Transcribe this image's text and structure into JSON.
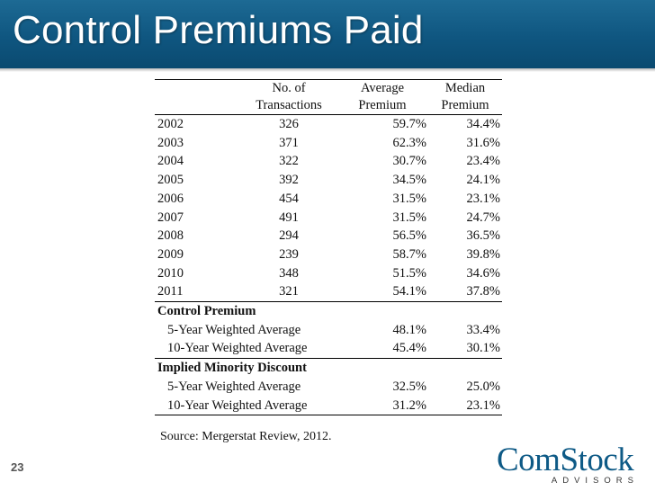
{
  "slide": {
    "title": "Control Premiums Paid",
    "number": "23",
    "source": "Source: Mergerstat Review, 2012.",
    "colors": {
      "title_bar": "#0f5680",
      "title_text": "#ffffff",
      "logo": "#0e5a86"
    }
  },
  "table": {
    "headers": {
      "col_tx": [
        "No. of",
        "Transactions"
      ],
      "col_avg": [
        "Average",
        "Premium"
      ],
      "col_med": [
        "Median",
        "Premium"
      ]
    },
    "rows": [
      {
        "year": "2002",
        "transactions": "326",
        "average": "59.7%",
        "median": "34.4%"
      },
      {
        "year": "2003",
        "transactions": "371",
        "average": "62.3%",
        "median": "31.6%"
      },
      {
        "year": "2004",
        "transactions": "322",
        "average": "30.7%",
        "median": "23.4%"
      },
      {
        "year": "2005",
        "transactions": "392",
        "average": "34.5%",
        "median": "24.1%"
      },
      {
        "year": "2006",
        "transactions": "454",
        "average": "31.5%",
        "median": "23.1%"
      },
      {
        "year": "2007",
        "transactions": "491",
        "average": "31.5%",
        "median": "24.7%"
      },
      {
        "year": "2008",
        "transactions": "294",
        "average": "56.5%",
        "median": "36.5%"
      },
      {
        "year": "2009",
        "transactions": "239",
        "average": "58.7%",
        "median": "39.8%"
      },
      {
        "year": "2010",
        "transactions": "348",
        "average": "51.5%",
        "median": "34.6%"
      },
      {
        "year": "2011",
        "transactions": "321",
        "average": "54.1%",
        "median": "37.8%"
      }
    ],
    "sections": [
      {
        "label": "Control Premium",
        "rows": [
          {
            "label": "5-Year Weighted Average",
            "average": "48.1%",
            "median": "33.4%"
          },
          {
            "label": "10-Year Weighted Average",
            "average": "45.4%",
            "median": "30.1%"
          }
        ]
      },
      {
        "label": "Implied Minority Discount",
        "rows": [
          {
            "label": "5-Year Weighted Average",
            "average": "32.5%",
            "median": "25.0%"
          },
          {
            "label": "10-Year Weighted Average",
            "average": "31.2%",
            "median": "23.1%"
          }
        ]
      }
    ]
  },
  "logo": {
    "main": "ComStock",
    "sub": "ADVISORS"
  }
}
